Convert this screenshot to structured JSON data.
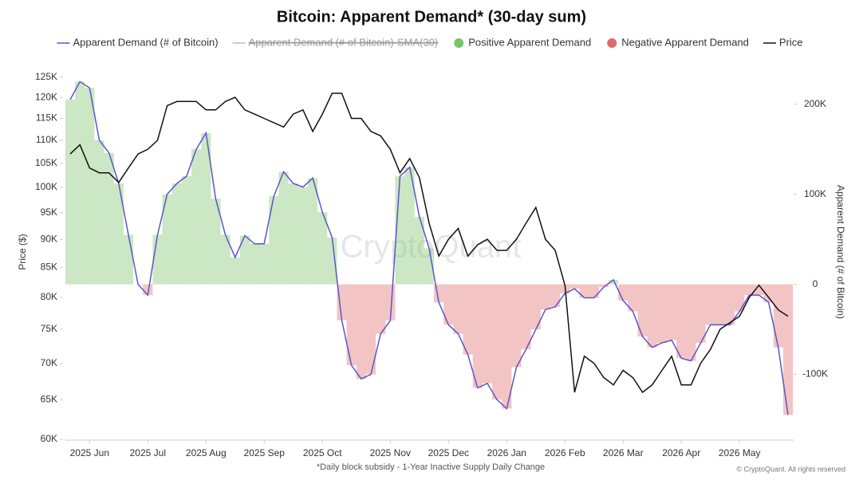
{
  "chart_data": {
    "type": "line",
    "title": "Bitcoin: Apparent Demand* (30-day sum)",
    "ylabel": "Price ($)",
    "y2label": "Apparent Demand (# of Bitcoin)",
    "footnote": "*Daily block subsidy - 1-Year Inactive Supply Daily Change",
    "credit": "© CryptoQuant. All rights reserved",
    "watermark": "CryptoQuant",
    "categories": [
      null,
      null,
      "2025 Jun",
      null,
      null,
      null,
      null,
      null,
      "2025 Jul",
      null,
      null,
      null,
      null,
      null,
      "2025 Aug",
      null,
      null,
      null,
      null,
      null,
      "2025 Sep",
      null,
      null,
      null,
      null,
      null,
      "2025 Oct",
      null,
      null,
      null,
      null,
      null,
      null,
      "2025 Nov",
      null,
      null,
      null,
      null,
      null,
      "2025 Dec",
      null,
      null,
      null,
      null,
      null,
      "2026 Jan",
      null,
      null,
      null,
      null,
      null,
      "2026 Feb",
      null,
      null,
      null,
      null,
      null,
      "2026 Mar",
      null,
      null,
      null,
      null,
      null,
      "2026 Apr",
      null,
      null,
      null,
      null,
      null,
      "2026 May",
      null,
      null,
      null,
      null,
      null
    ],
    "series": [
      {
        "name": "Apparent Demand (# of Bitcoin)",
        "color": "#5a55cc",
        "axis": "y2",
        "values": [
          205000,
          225000,
          218000,
          160000,
          146000,
          112000,
          55000,
          0,
          -12000,
          55000,
          100000,
          112000,
          120000,
          150000,
          168000,
          95000,
          55000,
          30000,
          54000,
          45000,
          45000,
          98000,
          125000,
          112000,
          108000,
          118000,
          80000,
          52000,
          -40000,
          -90000,
          -105000,
          -100000,
          -55000,
          -40000,
          120000,
          130000,
          75000,
          40000,
          -20000,
          -45000,
          -55000,
          -78000,
          -115000,
          -110000,
          -128000,
          -138000,
          -92000,
          -72000,
          -50000,
          -28000,
          -25000,
          -10000,
          -5000,
          -15000,
          -15000,
          -3000,
          5000,
          -18000,
          -30000,
          -58000,
          -70000,
          -65000,
          -62000,
          -82000,
          -85000,
          -65000,
          -45000,
          -45000,
          -45000,
          -30000,
          -12000,
          -12000,
          -20000,
          -70000,
          -145000
        ]
      },
      {
        "name": "Price",
        "color": "#111111",
        "axis": "y",
        "values": [
          107000,
          109000,
          104000,
          103000,
          103000,
          101000,
          104000,
          107000,
          108000,
          110000,
          118000,
          119000,
          119000,
          119000,
          117000,
          117000,
          119000,
          120000,
          117000,
          116000,
          115000,
          114000,
          113000,
          116000,
          117000,
          112000,
          116000,
          121000,
          121000,
          115000,
          115000,
          112000,
          111000,
          108000,
          103000,
          106000,
          102000,
          93000,
          87000,
          90000,
          92000,
          87000,
          89000,
          90000,
          88000,
          88000,
          90000,
          93000,
          96000,
          90000,
          88000,
          82000,
          66000,
          71000,
          70000,
          68000,
          67000,
          69000,
          68000,
          66000,
          67000,
          69000,
          71000,
          67000,
          67000,
          70000,
          72000,
          75000,
          76000,
          77000,
          80000,
          82000,
          80000,
          78000,
          77000
        ]
      }
    ],
    "hidden_series": [
      {
        "name": "Apparent Demand (# of Bitcoin)-SMA(30)",
        "color": "#bbbbbb"
      }
    ],
    "fill": {
      "positive": {
        "name": "Positive Apparent Demand",
        "color": "#7cc46a"
      },
      "negative": {
        "name": "Negative Apparent Demand",
        "color": "#e06b6b"
      }
    },
    "ylog": true,
    "ylim": [
      59900,
      126400
    ],
    "yticks": [
      {
        "value": 60000,
        "label": "60K"
      },
      {
        "value": 65000,
        "label": "65K"
      },
      {
        "value": 70000,
        "label": "70K"
      },
      {
        "value": 75000,
        "label": "75K"
      },
      {
        "value": 80000,
        "label": "80K"
      },
      {
        "value": 85000,
        "label": "85K"
      },
      {
        "value": 90000,
        "label": "90K"
      },
      {
        "value": 95000,
        "label": "95K"
      },
      {
        "value": 100000,
        "label": "100K"
      },
      {
        "value": 105000,
        "label": "105K"
      },
      {
        "value": 110000,
        "label": "110K"
      },
      {
        "value": 115000,
        "label": "115K"
      },
      {
        "value": 120000,
        "label": "120K"
      },
      {
        "value": 125000,
        "label": "125K"
      }
    ],
    "y2lim": [
      -173000,
      236000
    ],
    "y2ticks": [
      {
        "value": -100000,
        "label": "-100K"
      },
      {
        "value": 0,
        "label": "0"
      },
      {
        "value": 100000,
        "label": "100K"
      },
      {
        "value": 200000,
        "label": "200K"
      }
    ],
    "legend": "top"
  }
}
